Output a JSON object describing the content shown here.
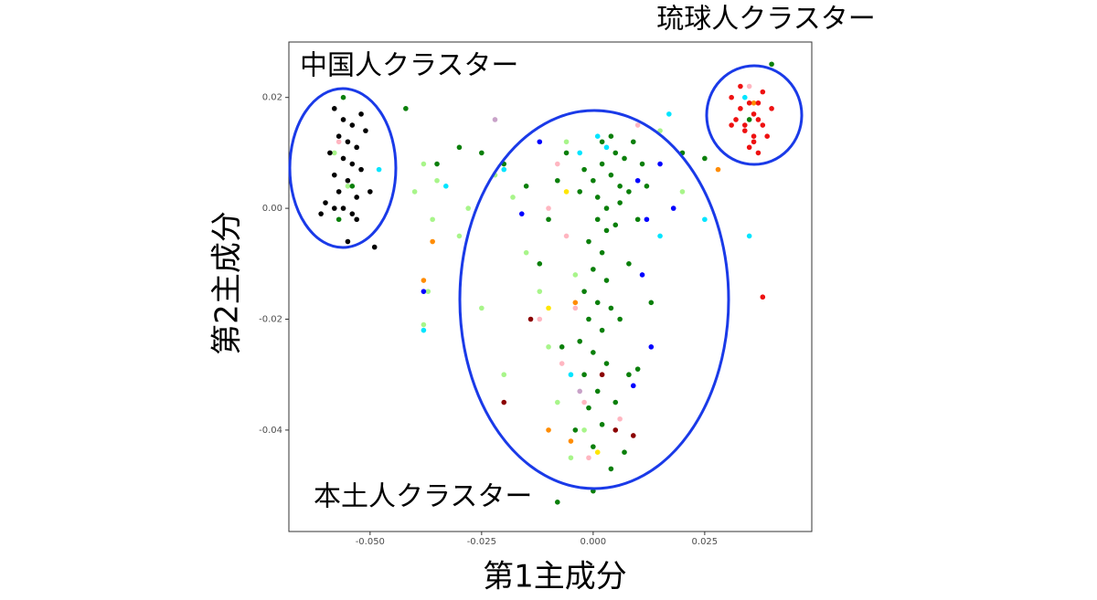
{
  "chart_data": {
    "type": "scatter",
    "xlabel": "第1主成分",
    "ylabel": "第2主成分",
    "annotations": [
      "琉球人クラスター",
      "中国人クラスター",
      "本土人クラスター"
    ],
    "xlim": [
      -0.0682,
      0.049
    ],
    "ylim": [
      -0.0583,
      0.03
    ],
    "xticks": [
      {
        "value": -0.05,
        "label": "-0.050"
      },
      -0.025,
      {
        "value": 0,
        "label": "0.000"
      },
      0.025
    ],
    "yticks": [
      0.02,
      {
        "value": 0,
        "label": "0.00"
      },
      -0.02,
      -0.04
    ],
    "grid": false,
    "series": [
      {
        "color": "#a8f58a",
        "x": [
          -0.038,
          -0.04,
          -0.035,
          -0.036,
          -0.03,
          -0.028,
          -0.022,
          -0.018,
          -0.015,
          -0.012,
          -0.01,
          -0.008,
          -0.005,
          -0.02,
          -0.025,
          -0.037,
          -0.038,
          -0.006,
          -0.004,
          -0.002,
          0.015,
          0.02,
          -0.055,
          -0.058
        ],
        "y": [
          0.008,
          0.003,
          0.005,
          -0.002,
          -0.005,
          0.0,
          0.006,
          0.002,
          -0.008,
          -0.015,
          -0.025,
          -0.035,
          -0.045,
          -0.03,
          -0.018,
          -0.015,
          -0.021,
          0.012,
          -0.012,
          -0.04,
          0.014,
          0.003,
          0.004,
          0.01
        ]
      },
      {
        "color": "#ffb6c1",
        "x": [
          -0.008,
          -0.01,
          -0.006,
          -0.004,
          -0.007,
          -0.002,
          0.006,
          -0.012,
          0.01,
          -0.001,
          0.035,
          -0.057
        ],
        "y": [
          0.008,
          0.0,
          -0.005,
          -0.018,
          -0.028,
          -0.035,
          -0.038,
          -0.02,
          0.015,
          -0.045,
          0.022,
          0.012
        ]
      },
      {
        "color": "#c8a2c8",
        "x": [
          -0.022,
          -0.003
        ],
        "y": [
          0.016,
          -0.033
        ]
      },
      {
        "color": "#00e5ff",
        "x": [
          0.001,
          0.003,
          -0.003,
          -0.02,
          -0.033,
          -0.038,
          -0.005,
          0.015,
          0.025,
          0.034,
          0.035,
          -0.048,
          0.017
        ],
        "y": [
          0.013,
          0.011,
          0.01,
          0.007,
          0.004,
          -0.022,
          -0.03,
          -0.005,
          -0.002,
          0.02,
          -0.005,
          0.007,
          0.017
        ]
      },
      {
        "color": "#ff8c00",
        "x": [
          -0.036,
          -0.038,
          -0.01,
          -0.005,
          0.028,
          0.036,
          -0.004
        ],
        "y": [
          -0.006,
          -0.013,
          -0.04,
          -0.042,
          0.007,
          0.019,
          -0.017
        ]
      },
      {
        "color": "#ffe600",
        "x": [
          -0.01,
          0.001,
          -0.006
        ],
        "y": [
          -0.018,
          -0.044,
          0.003
        ]
      },
      {
        "color": "#0000ff",
        "x": [
          0.01,
          0.012,
          0.011,
          0.013,
          0.009,
          0.015,
          -0.038,
          -0.016,
          0.018,
          -0.012
        ],
        "y": [
          0.005,
          -0.002,
          -0.012,
          -0.025,
          -0.032,
          0.008,
          -0.015,
          -0.001,
          0.0,
          0.012
        ]
      },
      {
        "color": "#8b0000",
        "x": [
          -0.02,
          0.005,
          0.002,
          -0.014,
          0.009
        ],
        "y": [
          -0.035,
          -0.04,
          -0.03,
          -0.02,
          -0.041
        ]
      },
      {
        "color": "#0a7f0a",
        "x": [
          0.0,
          0.002,
          0.004,
          0.006,
          0.001,
          0.003,
          0.005,
          -0.002,
          0.007,
          0.008,
          0.002,
          0.004,
          -0.003,
          0.006,
          0.001,
          0.003,
          0.005,
          -0.001,
          0.002,
          0.0,
          0.003,
          -0.002,
          0.001,
          0.004,
          -0.001,
          0.002,
          -0.003,
          0.0,
          0.003,
          -0.002,
          0.001,
          -0.001,
          0.002,
          0.0,
          0.004,
          0.0,
          -0.008,
          0.009,
          0.011,
          0.012,
          0.01,
          0.008,
          0.006,
          0.008,
          -0.006,
          -0.008,
          -0.01,
          -0.012,
          -0.007,
          -0.015,
          -0.02,
          -0.025,
          -0.03,
          -0.035,
          -0.042,
          0.02,
          0.025,
          0.035,
          0.04,
          -0.056,
          -0.054,
          -0.057,
          0.005,
          0.007,
          -0.004,
          0.013,
          0.01
        ],
        "y": [
          0.005,
          0.008,
          0.006,
          0.004,
          0.002,
          0.0,
          0.01,
          0.007,
          0.009,
          0.003,
          0.012,
          0.013,
          0.003,
          0.001,
          -0.002,
          -0.004,
          -0.003,
          -0.006,
          -0.008,
          -0.011,
          -0.013,
          -0.015,
          -0.017,
          -0.018,
          -0.02,
          -0.022,
          -0.024,
          -0.026,
          -0.028,
          -0.03,
          -0.033,
          -0.036,
          -0.039,
          -0.043,
          -0.047,
          -0.051,
          -0.053,
          0.012,
          0.008,
          0.004,
          -0.002,
          -0.01,
          -0.02,
          -0.03,
          0.01,
          0.005,
          -0.002,
          -0.01,
          -0.025,
          0.004,
          0.008,
          0.01,
          0.011,
          0.008,
          0.018,
          0.01,
          0.009,
          0.016,
          0.026,
          0.02,
          0.004,
          -0.002,
          -0.035,
          -0.044,
          -0.04,
          -0.017,
          -0.029
        ]
      },
      {
        "color": "#000000",
        "x": [
          -0.058,
          -0.056,
          -0.054,
          -0.052,
          -0.057,
          -0.055,
          -0.053,
          -0.059,
          -0.051,
          -0.056,
          -0.054,
          -0.058,
          -0.052,
          -0.055,
          -0.057,
          -0.053,
          -0.06,
          -0.05,
          -0.056,
          -0.054,
          -0.061,
          -0.058,
          -0.053,
          -0.049,
          -0.055
        ],
        "y": [
          0.018,
          0.016,
          0.015,
          0.017,
          0.013,
          0.012,
          0.011,
          0.01,
          0.014,
          0.009,
          0.008,
          0.006,
          0.007,
          0.005,
          0.003,
          0.002,
          0.001,
          0.003,
          0.0,
          -0.001,
          -0.001,
          0.0,
          -0.002,
          -0.007,
          -0.006
        ]
      },
      {
        "color": "#ee1111",
        "x": [
          0.031,
          0.033,
          0.035,
          0.036,
          0.037,
          0.038,
          0.034,
          0.032,
          0.039,
          0.036,
          0.035,
          0.037,
          0.033,
          0.04,
          0.038,
          0.034,
          0.036,
          0.031,
          0.038,
          0.037
        ],
        "y": [
          0.02,
          0.018,
          0.019,
          0.017,
          0.016,
          0.015,
          0.014,
          0.016,
          0.013,
          0.012,
          0.011,
          0.019,
          0.022,
          0.018,
          0.021,
          0.015,
          0.013,
          0.015,
          -0.016,
          0.01
        ]
      }
    ]
  }
}
